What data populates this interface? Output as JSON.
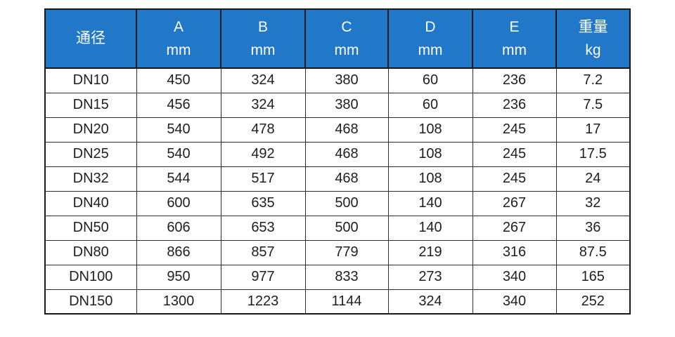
{
  "colors": {
    "header_bg": "#2177c8",
    "header_text": "#ffffff",
    "body_text": "#1f1f1f",
    "grid_border": "#2c2c2c",
    "outer_border": "#181818",
    "page_bg": "#ffffff"
  },
  "chart_data": {
    "type": "table",
    "title": "",
    "columns": [
      {
        "label": "通径",
        "unit": ""
      },
      {
        "label": "A",
        "unit": "mm"
      },
      {
        "label": "B",
        "unit": "mm"
      },
      {
        "label": "C",
        "unit": "mm"
      },
      {
        "label": "D",
        "unit": "mm"
      },
      {
        "label": "E",
        "unit": "mm"
      },
      {
        "label": "重量",
        "unit": "kg"
      }
    ],
    "rows": [
      [
        "DN10",
        "450",
        "324",
        "380",
        "60",
        "236",
        "7.2"
      ],
      [
        "DN15",
        "456",
        "324",
        "380",
        "60",
        "236",
        "7.5"
      ],
      [
        "DN20",
        "540",
        "478",
        "468",
        "108",
        "245",
        "17"
      ],
      [
        "DN25",
        "540",
        "492",
        "468",
        "108",
        "245",
        "17.5"
      ],
      [
        "DN32",
        "544",
        "517",
        "468",
        "108",
        "245",
        "24"
      ],
      [
        "DN40",
        "600",
        "635",
        "500",
        "140",
        "267",
        "32"
      ],
      [
        "DN50",
        "606",
        "653",
        "500",
        "140",
        "267",
        "36"
      ],
      [
        "DN80",
        "866",
        "857",
        "779",
        "219",
        "316",
        "87.5"
      ],
      [
        "DN100",
        "950",
        "977",
        "833",
        "273",
        "340",
        "165"
      ],
      [
        "DN150",
        "1300",
        "1223",
        "1144",
        "324",
        "340",
        "252"
      ]
    ]
  }
}
